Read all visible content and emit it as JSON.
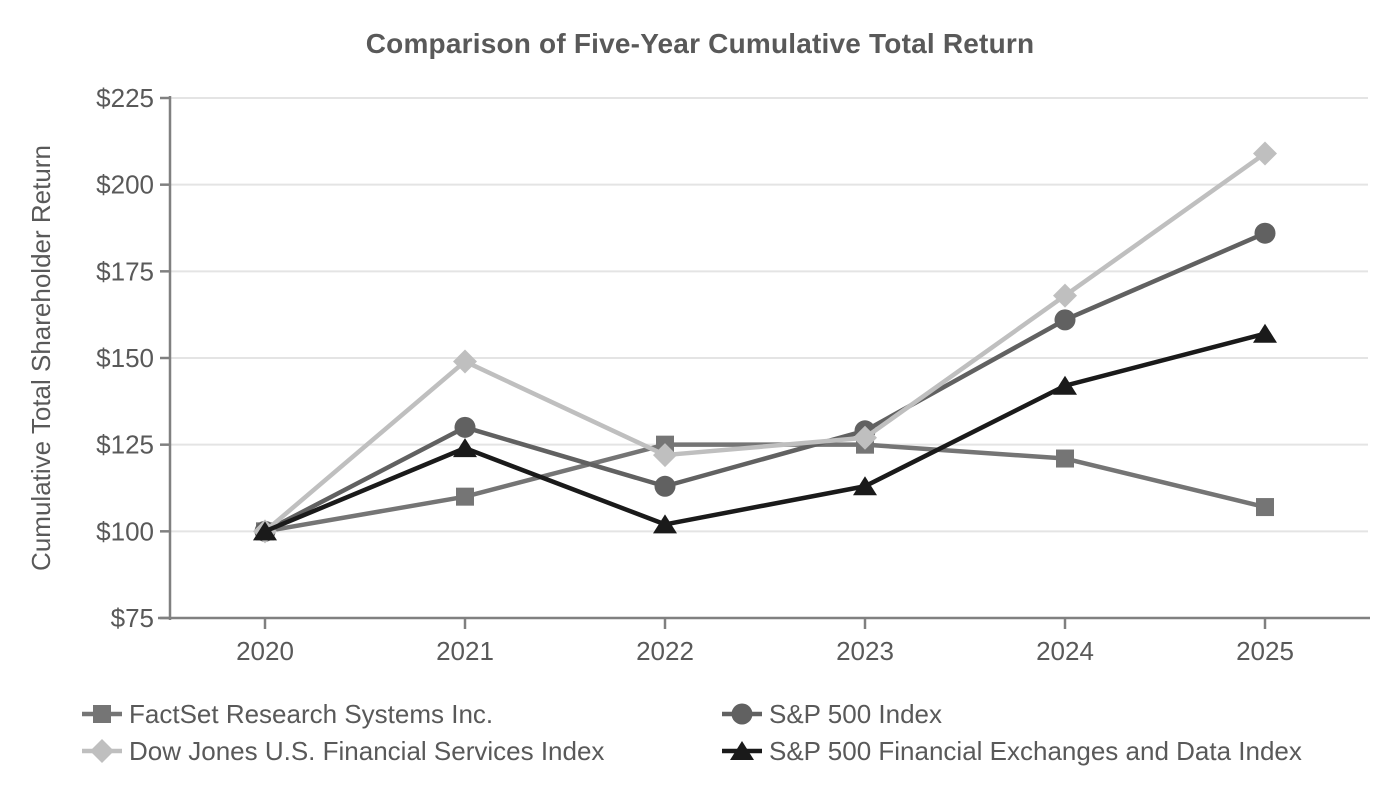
{
  "chart_data": {
    "type": "line",
    "title": "Comparison of Five-Year Cumulative Total Return",
    "xlabel": "",
    "ylabel": "Cumulative Total Shareholder Return",
    "x_categories": [
      "2020",
      "2021",
      "2022",
      "2023",
      "2024",
      "2025"
    ],
    "ylim": [
      75,
      225
    ],
    "ytick_values": [
      75,
      100,
      125,
      150,
      175,
      200,
      225
    ],
    "ytick_labels": [
      "$75",
      "$100",
      "$125",
      "$150",
      "$175",
      "$200",
      "$225"
    ],
    "grid": "horizontal-only",
    "legend_position": "bottom-two-columns",
    "series": [
      {
        "name": "FactSet Research Systems Inc.",
        "marker": "square",
        "color": "#757575",
        "values": [
          100,
          110,
          125,
          125,
          121,
          107
        ]
      },
      {
        "name": "S&P 500 Index",
        "marker": "circle",
        "color": "#616161",
        "values": [
          100,
          130,
          113,
          129,
          161,
          186
        ]
      },
      {
        "name": "Dow Jones U.S. Financial Services Index",
        "marker": "diamond",
        "color": "#bfbfbf",
        "values": [
          100,
          149,
          122,
          127,
          168,
          209
        ]
      },
      {
        "name": "S&P 500 Financial Exchanges and Data Index",
        "marker": "triangle",
        "color": "#1a1a1a",
        "values": [
          100,
          124,
          102,
          113,
          142,
          157
        ]
      }
    ],
    "colors": {
      "background": "#ffffff",
      "text": "#595959",
      "axis": "#808080",
      "gridline": "#e4e4e4"
    }
  }
}
